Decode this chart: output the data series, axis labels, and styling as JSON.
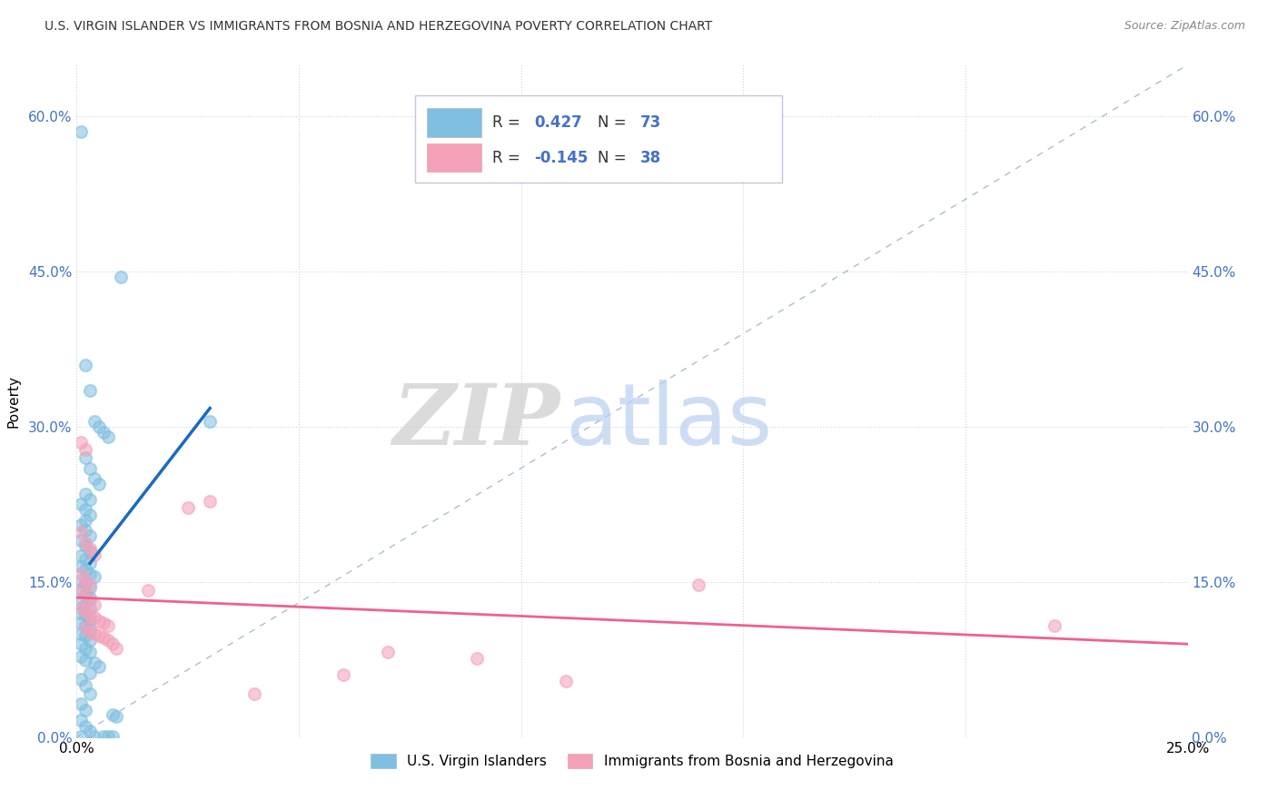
{
  "title": "U.S. VIRGIN ISLANDER VS IMMIGRANTS FROM BOSNIA AND HERZEGOVINA POVERTY CORRELATION CHART",
  "source": "Source: ZipAtlas.com",
  "ylabel": "Poverty",
  "yaxis_labels": [
    "0.0%",
    "15.0%",
    "30.0%",
    "45.0%",
    "60.0%"
  ],
  "yaxis_values": [
    0.0,
    0.15,
    0.3,
    0.45,
    0.6
  ],
  "xlim": [
    0.0,
    0.25
  ],
  "ylim": [
    0.0,
    0.65
  ],
  "r_blue": 0.427,
  "n_blue": 73,
  "r_pink": -0.145,
  "n_pink": 38,
  "legend_blue_label": "U.S. Virgin Islanders",
  "legend_pink_label": "Immigrants from Bosnia and Herzegovina",
  "watermark_zip": "ZIP",
  "watermark_atlas": "atlas",
  "blue_color": "#7fbfdf",
  "pink_color": "#f4a0b8",
  "blue_line_color": "#1a6bbf",
  "pink_line_color": "#f06090",
  "dash_line_color": "#a0b8d0",
  "blue_scatter": [
    [
      0.001,
      0.585
    ],
    [
      0.01,
      0.445
    ],
    [
      0.002,
      0.36
    ],
    [
      0.003,
      0.335
    ],
    [
      0.004,
      0.305
    ],
    [
      0.005,
      0.3
    ],
    [
      0.006,
      0.295
    ],
    [
      0.007,
      0.29
    ],
    [
      0.03,
      0.305
    ],
    [
      0.002,
      0.27
    ],
    [
      0.003,
      0.26
    ],
    [
      0.004,
      0.25
    ],
    [
      0.005,
      0.245
    ],
    [
      0.002,
      0.235
    ],
    [
      0.003,
      0.23
    ],
    [
      0.001,
      0.225
    ],
    [
      0.002,
      0.22
    ],
    [
      0.003,
      0.215
    ],
    [
      0.002,
      0.21
    ],
    [
      0.001,
      0.205
    ],
    [
      0.002,
      0.2
    ],
    [
      0.003,
      0.195
    ],
    [
      0.001,
      0.19
    ],
    [
      0.002,
      0.185
    ],
    [
      0.003,
      0.18
    ],
    [
      0.001,
      0.175
    ],
    [
      0.002,
      0.172
    ],
    [
      0.003,
      0.168
    ],
    [
      0.001,
      0.165
    ],
    [
      0.002,
      0.162
    ],
    [
      0.003,
      0.158
    ],
    [
      0.004,
      0.155
    ],
    [
      0.001,
      0.152
    ],
    [
      0.002,
      0.148
    ],
    [
      0.003,
      0.145
    ],
    [
      0.001,
      0.142
    ],
    [
      0.002,
      0.138
    ],
    [
      0.003,
      0.135
    ],
    [
      0.001,
      0.13
    ],
    [
      0.002,
      0.128
    ],
    [
      0.003,
      0.124
    ],
    [
      0.001,
      0.12
    ],
    [
      0.002,
      0.118
    ],
    [
      0.003,
      0.114
    ],
    [
      0.001,
      0.11
    ],
    [
      0.002,
      0.108
    ],
    [
      0.003,
      0.104
    ],
    [
      0.001,
      0.1
    ],
    [
      0.002,
      0.098
    ],
    [
      0.003,
      0.094
    ],
    [
      0.001,
      0.09
    ],
    [
      0.002,
      0.086
    ],
    [
      0.003,
      0.082
    ],
    [
      0.001,
      0.078
    ],
    [
      0.002,
      0.074
    ],
    [
      0.004,
      0.072
    ],
    [
      0.005,
      0.068
    ],
    [
      0.003,
      0.062
    ],
    [
      0.001,
      0.056
    ],
    [
      0.002,
      0.05
    ],
    [
      0.003,
      0.042
    ],
    [
      0.001,
      0.032
    ],
    [
      0.002,
      0.026
    ],
    [
      0.008,
      0.022
    ],
    [
      0.009,
      0.02
    ],
    [
      0.001,
      0.016
    ],
    [
      0.002,
      0.01
    ],
    [
      0.003,
      0.006
    ],
    [
      0.001,
      0.001
    ],
    [
      0.004,
      0.001
    ],
    [
      0.006,
      0.001
    ],
    [
      0.007,
      0.001
    ],
    [
      0.008,
      0.001
    ]
  ],
  "pink_scatter": [
    [
      0.001,
      0.285
    ],
    [
      0.002,
      0.278
    ],
    [
      0.03,
      0.228
    ],
    [
      0.025,
      0.222
    ],
    [
      0.001,
      0.198
    ],
    [
      0.002,
      0.188
    ],
    [
      0.003,
      0.182
    ],
    [
      0.004,
      0.176
    ],
    [
      0.001,
      0.158
    ],
    [
      0.002,
      0.152
    ],
    [
      0.003,
      0.147
    ],
    [
      0.001,
      0.143
    ],
    [
      0.002,
      0.138
    ],
    [
      0.003,
      0.132
    ],
    [
      0.004,
      0.128
    ],
    [
      0.001,
      0.125
    ],
    [
      0.002,
      0.122
    ],
    [
      0.003,
      0.118
    ],
    [
      0.004,
      0.116
    ],
    [
      0.005,
      0.112
    ],
    [
      0.006,
      0.11
    ],
    [
      0.007,
      0.108
    ],
    [
      0.002,
      0.106
    ],
    [
      0.003,
      0.102
    ],
    [
      0.004,
      0.1
    ],
    [
      0.005,
      0.098
    ],
    [
      0.006,
      0.096
    ],
    [
      0.007,
      0.094
    ],
    [
      0.008,
      0.09
    ],
    [
      0.009,
      0.086
    ],
    [
      0.016,
      0.142
    ],
    [
      0.14,
      0.147
    ],
    [
      0.22,
      0.108
    ],
    [
      0.07,
      0.082
    ],
    [
      0.09,
      0.076
    ],
    [
      0.06,
      0.06
    ],
    [
      0.11,
      0.054
    ],
    [
      0.04,
      0.042
    ]
  ],
  "blue_line_x": [
    0.003,
    0.03
  ],
  "blue_line_y": [
    0.168,
    0.318
  ],
  "pink_line_x": [
    0.0,
    0.25
  ],
  "pink_line_y": [
    0.135,
    0.09
  ]
}
